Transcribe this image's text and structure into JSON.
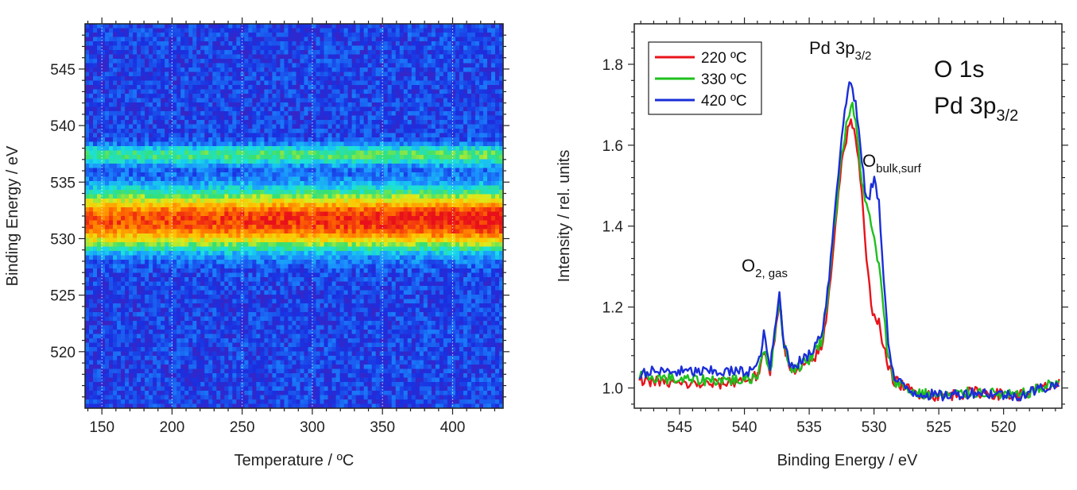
{
  "chart_data": [
    {
      "type": "heatmap",
      "xlabel": "Temperature / ºC",
      "ylabel": "Binding Energy / eV",
      "xlim": [
        138,
        436
      ],
      "ylim": [
        515,
        549
      ],
      "x_ticks": [
        150,
        200,
        250,
        300,
        350,
        400
      ],
      "y_ticks": [
        520,
        525,
        530,
        535,
        540,
        545
      ],
      "grid": "vertical dotted",
      "colormap": [
        "#5a1aa8",
        "#1a2fe0",
        "#1a8cff",
        "#19e0e6",
        "#38e070",
        "#d8ec1e",
        "#ffc400",
        "#ff6a00",
        "#e8101a"
      ],
      "features": [
        {
          "energy": 531.8,
          "width": 1.7,
          "intensity": 1.0
        },
        {
          "energy": 537.4,
          "width": 0.6,
          "intensity": 0.45
        }
      ]
    },
    {
      "type": "line",
      "xlabel": "Binding Energy / eV",
      "ylabel": "Intensity / rel. units",
      "xlim": [
        548.5,
        515.5
      ],
      "ylim": [
        0.95,
        1.9
      ],
      "x_ticks": [
        545,
        540,
        535,
        530,
        525,
        520
      ],
      "y_ticks": [
        1.0,
        1.2,
        1.4,
        1.6,
        1.8
      ],
      "legend_placement": "top-left",
      "series": [
        {
          "name": "220 ºC",
          "color": "#e8131b",
          "points": [
            [
              548,
              1.02
            ],
            [
              545,
              1.01
            ],
            [
              542,
              1.01
            ],
            [
              540,
              1.02
            ],
            [
              539,
              1.03
            ],
            [
              538.5,
              1.08
            ],
            [
              538,
              1.04
            ],
            [
              537.5,
              1.17
            ],
            [
              537.3,
              1.22
            ],
            [
              537,
              1.12
            ],
            [
              536.5,
              1.04
            ],
            [
              536,
              1.04
            ],
            [
              535,
              1.06
            ],
            [
              534,
              1.1
            ],
            [
              533.5,
              1.22
            ],
            [
              533,
              1.4
            ],
            [
              532.5,
              1.56
            ],
            [
              532,
              1.64
            ],
            [
              531.7,
              1.66
            ],
            [
              531.4,
              1.62
            ],
            [
              531,
              1.5
            ],
            [
              530.6,
              1.32
            ],
            [
              530.2,
              1.2
            ],
            [
              529.6,
              1.16
            ],
            [
              529,
              1.06
            ],
            [
              528.5,
              1.02
            ],
            [
              527,
              0.99
            ],
            [
              525,
              0.98
            ],
            [
              522,
              0.99
            ],
            [
              519,
              0.98
            ],
            [
              517,
              1.0
            ],
            [
              515.5,
              1.01
            ]
          ]
        },
        {
          "name": "330 ºC",
          "color": "#1ec01e",
          "points": [
            [
              548,
              1.03
            ],
            [
              545,
              1.02
            ],
            [
              542,
              1.02
            ],
            [
              540,
              1.02
            ],
            [
              539,
              1.03
            ],
            [
              538.5,
              1.1
            ],
            [
              538,
              1.04
            ],
            [
              537.5,
              1.17
            ],
            [
              537.3,
              1.22
            ],
            [
              537,
              1.12
            ],
            [
              536.5,
              1.05
            ],
            [
              536,
              1.05
            ],
            [
              535,
              1.07
            ],
            [
              534,
              1.12
            ],
            [
              533.5,
              1.25
            ],
            [
              533,
              1.42
            ],
            [
              532.5,
              1.58
            ],
            [
              532,
              1.67
            ],
            [
              531.7,
              1.7
            ],
            [
              531.4,
              1.65
            ],
            [
              531,
              1.53
            ],
            [
              530.6,
              1.45
            ],
            [
              530.2,
              1.4
            ],
            [
              529.6,
              1.3
            ],
            [
              529,
              1.1
            ],
            [
              528.5,
              1.02
            ],
            [
              527,
              0.99
            ],
            [
              525,
              0.98
            ],
            [
              522,
              0.99
            ],
            [
              519,
              0.98
            ],
            [
              517,
              1.0
            ],
            [
              515.5,
              1.02
            ]
          ]
        },
        {
          "name": "420 ºC",
          "color": "#1a2ed8",
          "points": [
            [
              548,
              1.04
            ],
            [
              545,
              1.04
            ],
            [
              542,
              1.04
            ],
            [
              540,
              1.04
            ],
            [
              539,
              1.05
            ],
            [
              538.5,
              1.13
            ],
            [
              538,
              1.05
            ],
            [
              537.5,
              1.18
            ],
            [
              537.3,
              1.23
            ],
            [
              537,
              1.12
            ],
            [
              536.5,
              1.06
            ],
            [
              536,
              1.06
            ],
            [
              535,
              1.08
            ],
            [
              534,
              1.14
            ],
            [
              533.5,
              1.26
            ],
            [
              533,
              1.45
            ],
            [
              532.5,
              1.62
            ],
            [
              532,
              1.74
            ],
            [
              531.8,
              1.76
            ],
            [
              531.4,
              1.7
            ],
            [
              531,
              1.58
            ],
            [
              530.6,
              1.46
            ],
            [
              530.3,
              1.48
            ],
            [
              530,
              1.52
            ],
            [
              529.6,
              1.45
            ],
            [
              529.2,
              1.25
            ],
            [
              528.8,
              1.08
            ],
            [
              528.4,
              1.02
            ],
            [
              527,
              0.99
            ],
            [
              525,
              0.98
            ],
            [
              522,
              0.99
            ],
            [
              519,
              0.98
            ],
            [
              517,
              1.0
            ],
            [
              515.5,
              1.01
            ]
          ]
        }
      ],
      "annotations": {
        "o2_gas": {
          "main": "O",
          "sub": "2, gas"
        },
        "pd_peak": {
          "main": "Pd 3p",
          "sub": "3/2"
        },
        "o_bulk": {
          "main": "O",
          "sub": "bulk,surf"
        },
        "title_line1": "O 1s",
        "title_line2": {
          "main": "Pd 3p",
          "sub": "3/2"
        }
      }
    }
  ]
}
